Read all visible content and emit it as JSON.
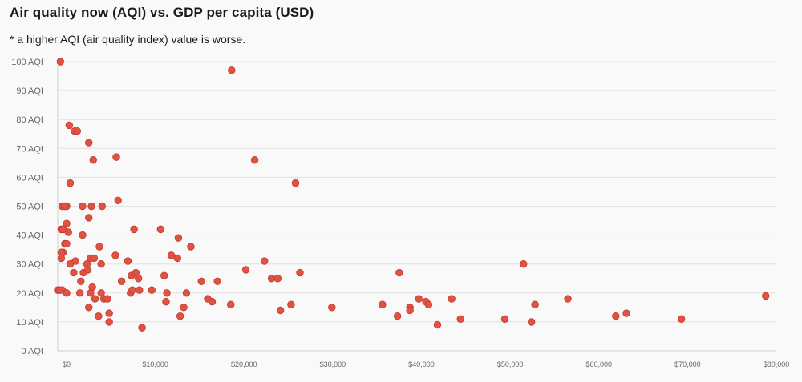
{
  "chart_data": {
    "type": "scatter",
    "title": "Air quality now (AQI) vs. GDP per capita (USD)",
    "subtitle": "* a higher AQI (air quality index) value is worse.",
    "xlabel": "",
    "ylabel": "",
    "xlim": [
      -1000,
      80000
    ],
    "ylim": [
      0,
      100
    ],
    "x_ticks": [
      0,
      10000,
      20000,
      30000,
      40000,
      50000,
      60000,
      70000,
      80000
    ],
    "x_tick_labels": [
      "$0",
      "$10,000",
      "$20,000",
      "$30,000",
      "$40,000",
      "$50,000",
      "$60,000",
      "$70,000",
      "$80,000"
    ],
    "y_ticks": [
      0,
      10,
      20,
      30,
      40,
      50,
      60,
      70,
      80,
      90,
      100
    ],
    "y_tick_labels": [
      "0 AQI",
      "10 AQI",
      "20 AQI",
      "30 AQI",
      "40 AQI",
      "50 AQI",
      "60 AQI",
      "70 AQI",
      "80 AQI",
      "90 AQI",
      "100 AQI"
    ],
    "grid": true,
    "legend": "none",
    "color": "#e05243",
    "points": [
      [
        -700,
        100
      ],
      [
        300,
        78
      ],
      [
        900,
        76
      ],
      [
        1200,
        76
      ],
      [
        2500,
        72
      ],
      [
        3000,
        66
      ],
      [
        5600,
        67
      ],
      [
        5800,
        52
      ],
      [
        400,
        58
      ],
      [
        -500,
        50
      ],
      [
        0,
        50
      ],
      [
        -200,
        50
      ],
      [
        1800,
        50
      ],
      [
        2800,
        50
      ],
      [
        4000,
        50
      ],
      [
        2500,
        46
      ],
      [
        0,
        44
      ],
      [
        200,
        41
      ],
      [
        -600,
        42
      ],
      [
        -400,
        42
      ],
      [
        1800,
        40
      ],
      [
        7600,
        42
      ],
      [
        -200,
        37
      ],
      [
        0,
        37
      ],
      [
        3700,
        36
      ],
      [
        -400,
        34
      ],
      [
        -600,
        34
      ],
      [
        -600,
        32
      ],
      [
        2700,
        32
      ],
      [
        3100,
        32
      ],
      [
        5500,
        33
      ],
      [
        400,
        30
      ],
      [
        1000,
        31
      ],
      [
        2300,
        30
      ],
      [
        3900,
        30
      ],
      [
        6900,
        31
      ],
      [
        800,
        27
      ],
      [
        1900,
        27
      ],
      [
        2400,
        28
      ],
      [
        -1000,
        21
      ],
      [
        -800,
        21
      ],
      [
        -500,
        21
      ],
      [
        0,
        20
      ],
      [
        1600,
        24
      ],
      [
        1500,
        20
      ],
      [
        2700,
        20
      ],
      [
        2900,
        22
      ],
      [
        3900,
        20
      ],
      [
        3200,
        18
      ],
      [
        4200,
        18
      ],
      [
        4600,
        18
      ],
      [
        2500,
        15
      ],
      [
        3600,
        12
      ],
      [
        4800,
        13
      ],
      [
        4800,
        10
      ],
      [
        6200,
        24
      ],
      [
        7300,
        26
      ],
      [
        7800,
        27
      ],
      [
        8100,
        25
      ],
      [
        7200,
        20
      ],
      [
        7400,
        21
      ],
      [
        8200,
        21
      ],
      [
        8500,
        8
      ],
      [
        9600,
        21
      ],
      [
        10600,
        42
      ],
      [
        11000,
        26
      ],
      [
        11200,
        17
      ],
      [
        11300,
        20
      ],
      [
        11800,
        33
      ],
      [
        12500,
        32
      ],
      [
        12600,
        39
      ],
      [
        12800,
        12
      ],
      [
        13200,
        15
      ],
      [
        13500,
        20
      ],
      [
        14000,
        36
      ],
      [
        15200,
        24
      ],
      [
        15900,
        18
      ],
      [
        16400,
        17
      ],
      [
        17000,
        24
      ],
      [
        18500,
        16
      ],
      [
        18600,
        97
      ],
      [
        20200,
        28
      ],
      [
        21200,
        66
      ],
      [
        22300,
        31
      ],
      [
        23100,
        25
      ],
      [
        23800,
        25
      ],
      [
        24100,
        14
      ],
      [
        25300,
        16
      ],
      [
        25800,
        58
      ],
      [
        26300,
        27
      ],
      [
        29900,
        15
      ],
      [
        35600,
        16
      ],
      [
        37300,
        12
      ],
      [
        37500,
        27
      ],
      [
        38700,
        15
      ],
      [
        38700,
        14
      ],
      [
        39700,
        18
      ],
      [
        40500,
        17
      ],
      [
        40800,
        16
      ],
      [
        41800,
        9
      ],
      [
        43400,
        18
      ],
      [
        44400,
        11
      ],
      [
        49400,
        11
      ],
      [
        51500,
        30
      ],
      [
        52400,
        10
      ],
      [
        52800,
        16
      ],
      [
        56500,
        18
      ],
      [
        61900,
        12
      ],
      [
        63100,
        13
      ],
      [
        69300,
        11
      ],
      [
        78800,
        19
      ]
    ]
  }
}
